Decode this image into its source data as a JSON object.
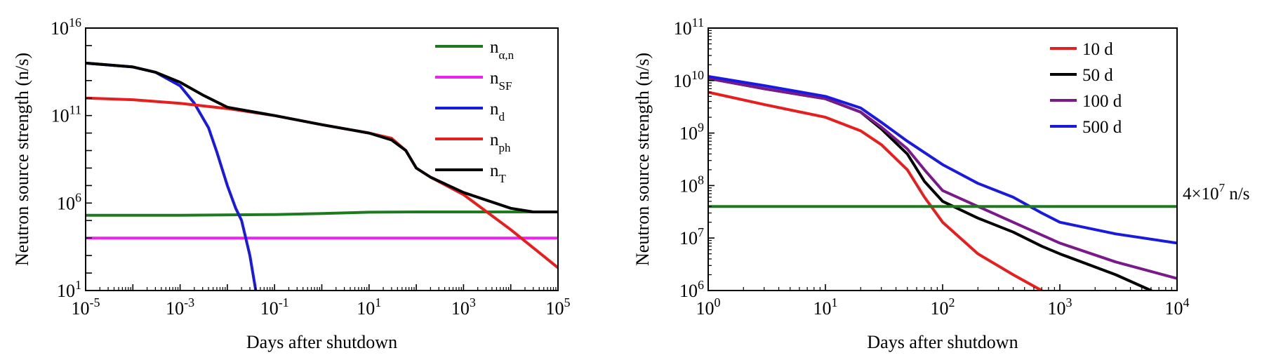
{
  "chart_data": [
    {
      "type": "line",
      "xscale": "log",
      "yscale": "log",
      "xlim": [
        1e-05,
        100000.0
      ],
      "ylim": [
        10,
        1e+16
      ],
      "xlabel": "Days after shutdown",
      "ylabel": "Neutron source strength (n/s)",
      "x_ticks": [
        {
          "value": 1e-05,
          "base": "10",
          "exp": "-5"
        },
        {
          "value": 0.001,
          "base": "10",
          "exp": "-3"
        },
        {
          "value": 0.1,
          "base": "10",
          "exp": "-1"
        },
        {
          "value": 10,
          "base": "10",
          "exp": "1"
        },
        {
          "value": 1000,
          "base": "10",
          "exp": "3"
        },
        {
          "value": 100000,
          "base": "10",
          "exp": "5"
        }
      ],
      "y_ticks": [
        {
          "value": 10,
          "base": "10",
          "exp": "1"
        },
        {
          "value": 1000000.0,
          "base": "10",
          "exp": "6"
        },
        {
          "value": 100000000000.0,
          "base": "10",
          "exp": "11"
        },
        {
          "value": 1e+16,
          "base": "10",
          "exp": "16"
        }
      ],
      "legend_position": "top-right",
      "series": [
        {
          "key": "alpha_n",
          "name_base": "n",
          "name_sub": "α,n",
          "color": "#1e7a1e",
          "points": [
            [
              1e-05,
              200000.0
            ],
            [
              0.001,
              200000.0
            ],
            [
              0.1,
              220000.0
            ],
            [
              1,
              250000.0
            ],
            [
              10,
              300000.0
            ],
            [
              100,
              310000.0
            ],
            [
              1000,
              310000.0
            ],
            [
              10000,
              310000.0
            ],
            [
              100000,
              310000.0
            ]
          ]
        },
        {
          "key": "SF",
          "name_base": "n",
          "name_sub": "SF",
          "color": "#ee22ee",
          "points": [
            [
              1e-05,
              10000.0
            ],
            [
              100000,
              10000.0
            ]
          ]
        },
        {
          "key": "d",
          "name_base": "n",
          "name_sub": "d",
          "color": "#1a1adf",
          "points": [
            [
              1e-05,
              100000000000000.0
            ],
            [
              0.0001,
              60000000000000.0
            ],
            [
              0.0003,
              30000000000000.0
            ],
            [
              0.001,
              5000000000000.0
            ],
            [
              0.002,
              500000000000.0
            ],
            [
              0.004,
              20000000000.0
            ],
            [
              0.006,
              800000000.0
            ],
            [
              0.01,
              10000000.0
            ],
            [
              0.015,
              500000.0
            ],
            [
              0.02,
              100000.0
            ],
            [
              0.03,
              1000.0
            ],
            [
              0.04,
              10
            ]
          ]
        },
        {
          "key": "ph",
          "name_base": "n",
          "name_sub": "ph",
          "color": "#e61e1e",
          "points": [
            [
              1e-05,
              1000000000000.0
            ],
            [
              0.0001,
              800000000000.0
            ],
            [
              0.001,
              500000000000.0
            ],
            [
              0.01,
              250000000000.0
            ],
            [
              0.1,
              100000000000.0
            ],
            [
              1,
              30000000000.0
            ],
            [
              10,
              10000000000.0
            ],
            [
              30,
              5000000000.0
            ],
            [
              60,
              1000000000.0
            ],
            [
              100,
              100000000.0
            ],
            [
              200,
              30000000.0
            ],
            [
              1000,
              3000000.0
            ],
            [
              10000,
              30000.0
            ],
            [
              100000,
              200
            ]
          ]
        },
        {
          "key": "T",
          "name_base": "n",
          "name_sub": "T",
          "color": "#000000",
          "points": [
            [
              1e-05,
              100000000000000.0
            ],
            [
              0.0001,
              60000000000000.0
            ],
            [
              0.0003,
              30000000000000.0
            ],
            [
              0.001,
              8000000000000.0
            ],
            [
              0.003,
              1500000000000.0
            ],
            [
              0.01,
              300000000000.0
            ],
            [
              0.1,
              100000000000.0
            ],
            [
              1,
              30000000000.0
            ],
            [
              10,
              10000000000.0
            ],
            [
              30,
              4000000000.0
            ],
            [
              60,
              1000000000.0
            ],
            [
              100,
              100000000.0
            ],
            [
              200,
              30000000.0
            ],
            [
              1000,
              4000000.0
            ],
            [
              10000,
              500000.0
            ],
            [
              30000,
              310000.0
            ],
            [
              100000,
              310000.0
            ]
          ]
        }
      ]
    },
    {
      "type": "line",
      "xscale": "log",
      "yscale": "log",
      "xlim": [
        1,
        10000
      ],
      "ylim": [
        1000000.0,
        100000000000.0
      ],
      "xlabel": "Days after shutdown",
      "ylabel": "Neutron source strength (n/s)",
      "x_ticks": [
        {
          "value": 1,
          "base": "10",
          "exp": "0"
        },
        {
          "value": 10,
          "base": "10",
          "exp": "1"
        },
        {
          "value": 100,
          "base": "10",
          "exp": "2"
        },
        {
          "value": 1000,
          "base": "10",
          "exp": "3"
        },
        {
          "value": 10000,
          "base": "10",
          "exp": "4"
        }
      ],
      "y_ticks": [
        {
          "value": 1000000.0,
          "base": "10",
          "exp": "6"
        },
        {
          "value": 10000000.0,
          "base": "10",
          "exp": "7"
        },
        {
          "value": 100000000.0,
          "base": "10",
          "exp": "8"
        },
        {
          "value": 1000000000.0,
          "base": "10",
          "exp": "9"
        },
        {
          "value": 10000000000.0,
          "base": "10",
          "exp": "10"
        },
        {
          "value": 100000000000.0,
          "base": "10",
          "exp": "11"
        }
      ],
      "legend_position": "top-right",
      "series": [
        {
          "key": "d10",
          "name": "10 d",
          "color": "#e61e1e",
          "points": [
            [
              1,
              6000000000.0
            ],
            [
              3,
              3500000000.0
            ],
            [
              10,
              2000000000.0
            ],
            [
              20,
              1100000000.0
            ],
            [
              30,
              600000000.0
            ],
            [
              50,
              200000000.0
            ],
            [
              70,
              60000000.0
            ],
            [
              100,
              20000000.0
            ],
            [
              200,
              5000000.0
            ],
            [
              400,
              2000000.0
            ],
            [
              700,
              1000000.0
            ]
          ]
        },
        {
          "key": "d50",
          "name": "50 d",
          "color": "#000000",
          "points": [
            [
              1,
              11000000000.0
            ],
            [
              3,
              7000000000.0
            ],
            [
              10,
              4500000000.0
            ],
            [
              20,
              2500000000.0
            ],
            [
              30,
              1200000000.0
            ],
            [
              50,
              400000000.0
            ],
            [
              70,
              120000000.0
            ],
            [
              100,
              50000000.0
            ],
            [
              200,
              24000000.0
            ],
            [
              400,
              13000000.0
            ],
            [
              700,
              7000000.0
            ],
            [
              1000,
              5000000.0
            ],
            [
              3000,
              2000000.0
            ],
            [
              6000,
              1000000.0
            ]
          ]
        },
        {
          "key": "d100",
          "name": "100 d",
          "color": "#7a1a8a",
          "points": [
            [
              1,
              11000000000.0
            ],
            [
              3,
              7000000000.0
            ],
            [
              10,
              4500000000.0
            ],
            [
              20,
              2500000000.0
            ],
            [
              30,
              1300000000.0
            ],
            [
              50,
              500000000.0
            ],
            [
              70,
              200000000.0
            ],
            [
              100,
              80000000.0
            ],
            [
              200,
              40000000.0
            ],
            [
              400,
              20000000.0
            ],
            [
              1000,
              8000000.0
            ],
            [
              3000,
              3500000.0
            ],
            [
              10000,
              1700000.0
            ]
          ]
        },
        {
          "key": "d500",
          "name": "500 d",
          "color": "#1a1adf",
          "points": [
            [
              1,
              12000000000.0
            ],
            [
              3,
              8000000000.0
            ],
            [
              10,
              5000000000.0
            ],
            [
              20,
              3000000000.0
            ],
            [
              30,
              1600000000.0
            ],
            [
              50,
              700000000.0
            ],
            [
              100,
              250000000.0
            ],
            [
              200,
              110000000.0
            ],
            [
              400,
              60000000.0
            ],
            [
              700,
              30000000.0
            ],
            [
              1000,
              20000000.0
            ],
            [
              3000,
              12000000.0
            ],
            [
              10000,
              8000000.0
            ]
          ]
        },
        {
          "key": "threshold",
          "name": "",
          "color": "#1e7a1e",
          "points": [
            [
              1,
              40000000.0
            ],
            [
              10000,
              40000000.0
            ]
          ]
        }
      ],
      "annotation": {
        "base": "4×10",
        "exp": "7",
        "unit": " n/s",
        "y": 40000000.0
      }
    }
  ]
}
